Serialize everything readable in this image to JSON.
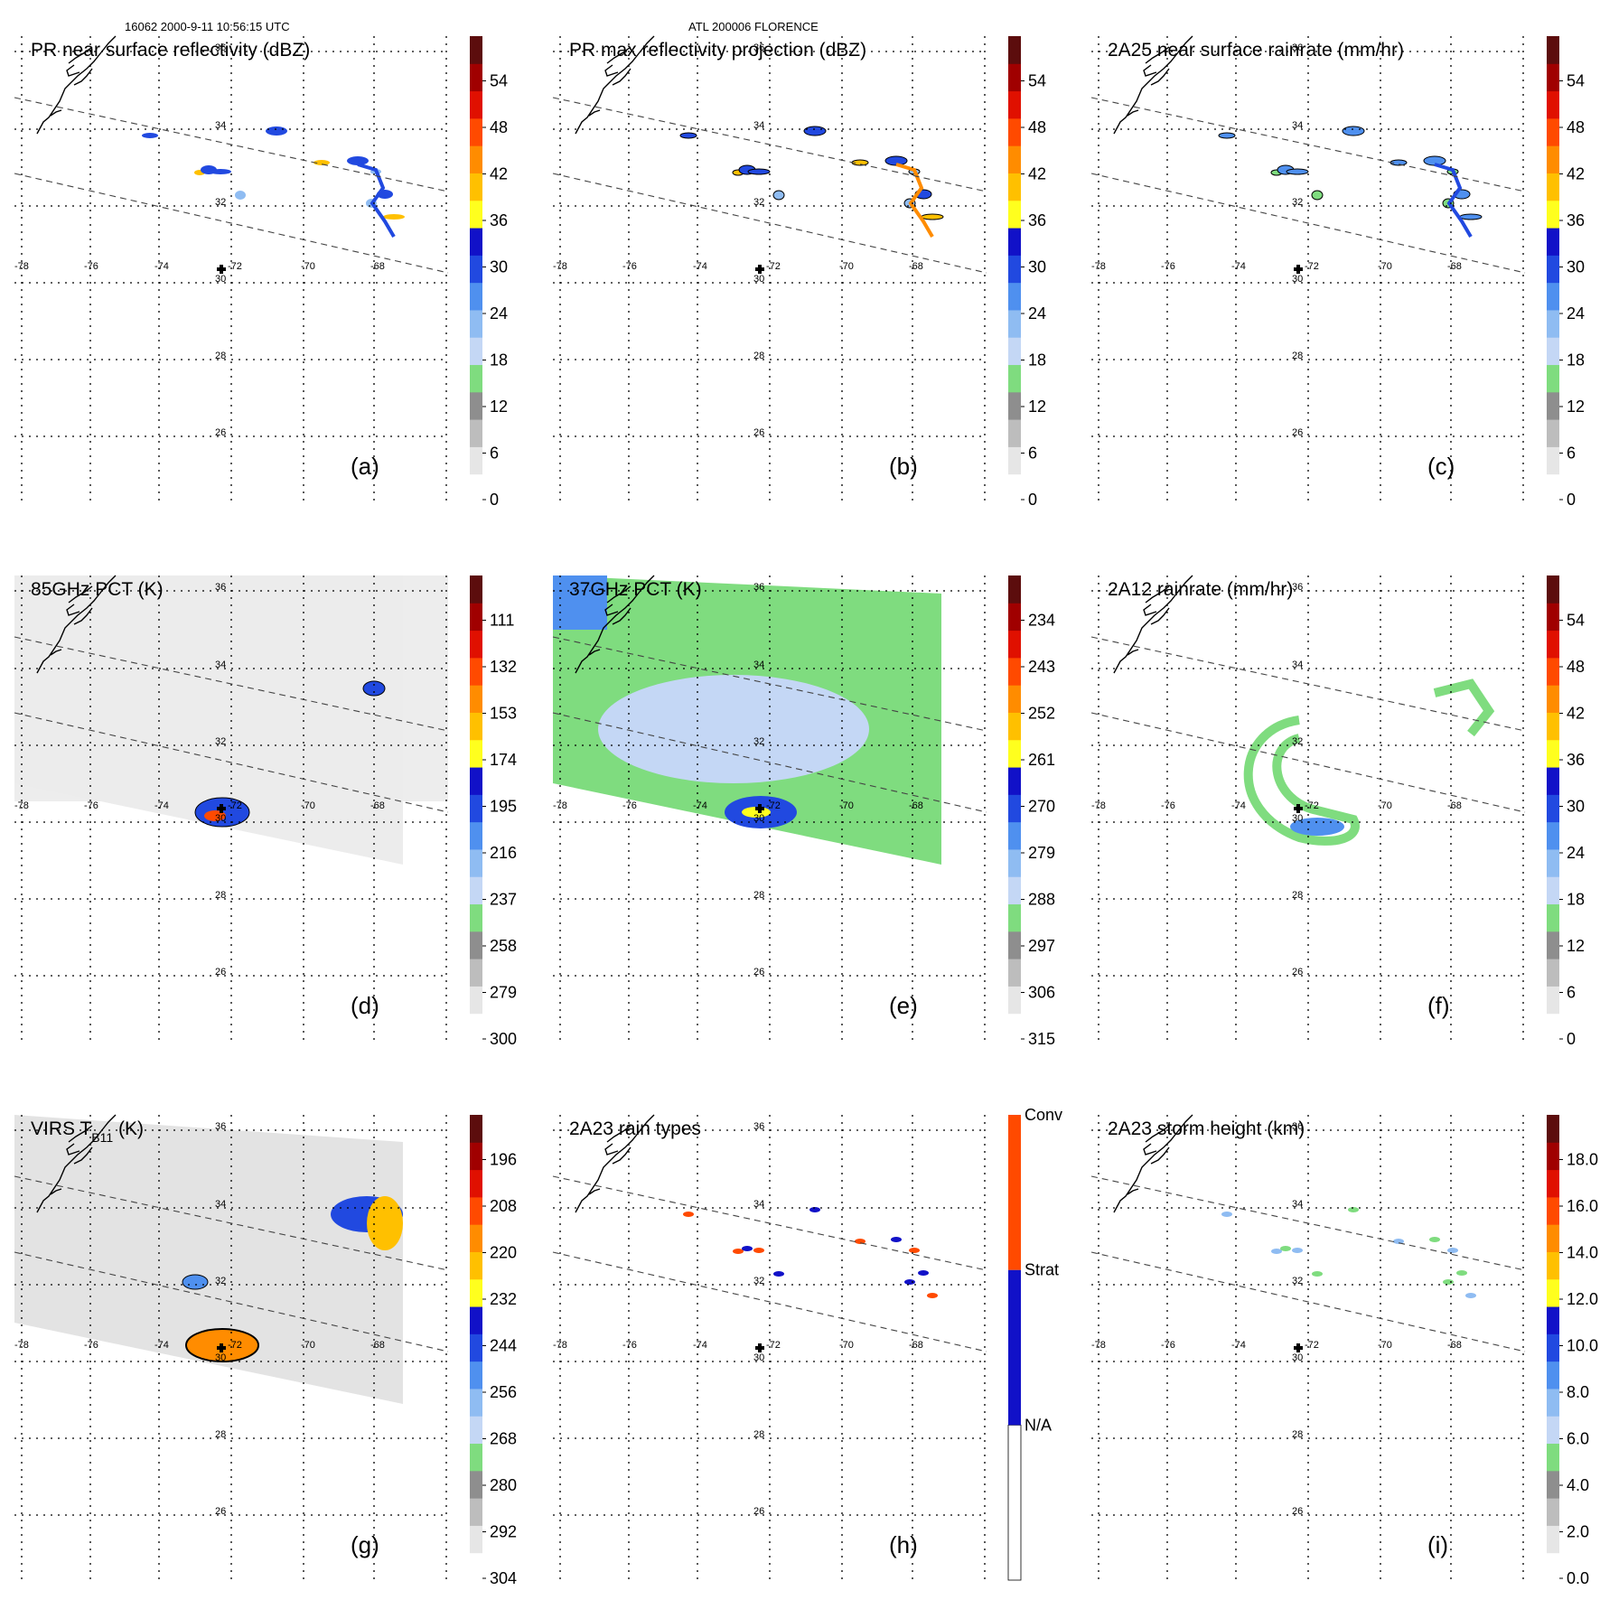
{
  "header": {
    "left": "16062 2000-9-11 10:56:15 UTC",
    "center": "ATL 200006 FLORENCE"
  },
  "lon_labels": [
    "-78",
    "-76",
    "-74",
    "-72",
    "-70",
    "-68"
  ],
  "lat_labels": [
    "36",
    "34",
    "32",
    "30",
    "28",
    "26"
  ],
  "panels": [
    {
      "title": "PR near surface reflectivity (dBZ)",
      "letter": "(a)",
      "colorbar": [
        "0",
        "6",
        "12",
        "18",
        "24",
        "30",
        "36",
        "42",
        "48",
        "54"
      ]
    },
    {
      "title": "PR max reflectivity projection (dBZ)",
      "letter": "(b)",
      "colorbar": [
        "0",
        "6",
        "12",
        "18",
        "24",
        "30",
        "36",
        "42",
        "48",
        "54"
      ]
    },
    {
      "title": "2A25 near surface rainrate (mm/hr)",
      "letter": "(c)",
      "colorbar": [
        "0",
        "6",
        "12",
        "18",
        "24",
        "30",
        "36",
        "42",
        "48",
        "54"
      ]
    },
    {
      "title": "85GHz PCT (K)",
      "letter": "(d)",
      "colorbar": [
        "300",
        "279",
        "258",
        "237",
        "216",
        "195",
        "174",
        "153",
        "132",
        "111"
      ]
    },
    {
      "title": "37GHz PCT (K)",
      "letter": "(e)",
      "colorbar": [
        "315",
        "306",
        "297",
        "288",
        "279",
        "270",
        "261",
        "252",
        "243",
        "234"
      ]
    },
    {
      "title": "2A12 rainrate (mm/hr)",
      "letter": "(f)",
      "colorbar": [
        "0",
        "6",
        "12",
        "18",
        "24",
        "30",
        "36",
        "42",
        "48",
        "54"
      ]
    },
    {
      "title": "VIRS T",
      "title_sub": "B11",
      "title_tail": " (K)",
      "letter": "(g)",
      "colorbar": [
        "304",
        "292",
        "280",
        "268",
        "256",
        "244",
        "232",
        "220",
        "208",
        "196"
      ]
    },
    {
      "title": "2A23 rain types",
      "letter": "(h)",
      "colorbar": [
        "N/A",
        "Strat",
        "Conv"
      ]
    },
    {
      "title": "2A23 storm height (km)",
      "letter": "(i)",
      "colorbar": [
        "0.0",
        "2.0",
        "4.0",
        "6.0",
        "8.0",
        "10.0",
        "12.0",
        "14.0",
        "16.0",
        "18.0"
      ]
    }
  ],
  "colors": {
    "ramp": [
      "#ffffff",
      "#e6e6e6",
      "#bdbdbd",
      "#8e8e8e",
      "#7fdc7f",
      "#c4d7f5",
      "#8fbcf2",
      "#4f90ef",
      "#2149e0",
      "#1111c8",
      "#ffff1e",
      "#ffc000",
      "#ff8c00",
      "#ff4a00",
      "#e01000",
      "#a00000",
      "#5c0d0d"
    ],
    "grid": "#000000",
    "track": "#444444"
  }
}
